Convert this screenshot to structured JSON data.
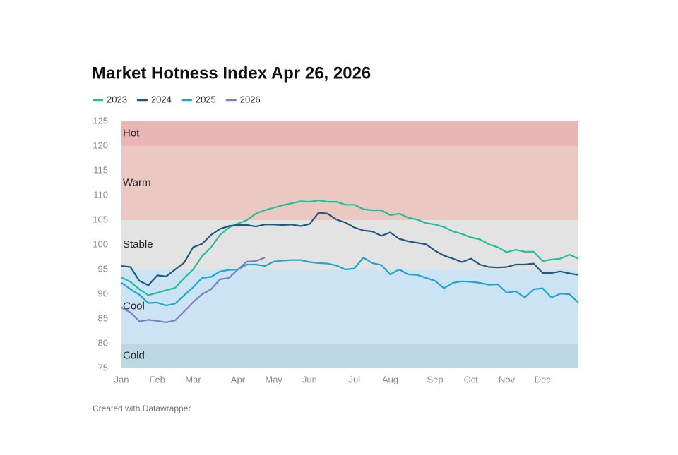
{
  "chart_data": {
    "type": "line",
    "title": "Market Hotness Index Apr 26, 2026",
    "footer": "Created with Datawrapper",
    "categories": [
      "Jan",
      null,
      null,
      null,
      "Feb",
      null,
      null,
      null,
      "Mar",
      null,
      null,
      null,
      null,
      "Apr",
      null,
      null,
      null,
      "May",
      null,
      null,
      null,
      "Jun",
      null,
      null,
      null,
      null,
      "Jul",
      null,
      null,
      null,
      "Aug",
      null,
      null,
      null,
      null,
      "Sep",
      null,
      null,
      null,
      "Oct",
      null,
      null,
      null,
      "Nov",
      null,
      null,
      null,
      "Dec",
      null,
      null,
      null,
      null
    ],
    "ylim": [
      75,
      125
    ],
    "yticks": [
      75,
      80,
      85,
      90,
      95,
      100,
      105,
      110,
      115,
      120,
      125
    ],
    "bands": [
      {
        "label": "Hot",
        "from": 120,
        "to": 125,
        "color": "#ebb5b3"
      },
      {
        "label": "Warm",
        "from": 105,
        "to": 120,
        "color": "#ecc8c2"
      },
      {
        "label": "Stable",
        "from": 95,
        "to": 105,
        "color": "#e3e3e3"
      },
      {
        "label": "Cool",
        "from": 80,
        "to": 95,
        "color": "#cce3f3"
      },
      {
        "label": "Cold",
        "from": 75,
        "to": 80,
        "color": "#bcd9e3"
      }
    ],
    "series": [
      {
        "name": "2023",
        "color": "#1fbf9a",
        "values": [
          93.4,
          92.5,
          91.0,
          89.8,
          90.3,
          90.8,
          91.3,
          93.3,
          95.0,
          97.7,
          99.5,
          102.0,
          103.5,
          104.3,
          105.0,
          106.3,
          107.0,
          107.5,
          108.0,
          108.4,
          108.8,
          108.7,
          109.0,
          108.7,
          108.7,
          108.1,
          108.1,
          107.2,
          107.0,
          107.0,
          106.0,
          106.3,
          105.5,
          105.1,
          104.4,
          104.1,
          103.6,
          102.7,
          102.2,
          101.5,
          101.1,
          100.1,
          99.5,
          98.5,
          99.0,
          98.6,
          98.6,
          96.7,
          97.0,
          97.2,
          98.0,
          97.2
        ]
      },
      {
        "name": "2024",
        "color": "#1f5a7a",
        "values": [
          95.7,
          95.5,
          92.7,
          91.8,
          93.8,
          93.6,
          95.0,
          96.4,
          99.5,
          100.2,
          102.0,
          103.2,
          103.8,
          104.0,
          104.0,
          103.7,
          104.1,
          104.1,
          104.0,
          104.1,
          103.8,
          104.2,
          106.5,
          106.3,
          105.1,
          104.5,
          103.5,
          102.9,
          102.7,
          101.8,
          102.5,
          101.2,
          100.7,
          100.4,
          100.1,
          98.8,
          97.8,
          97.2,
          96.5,
          97.2,
          96.0,
          95.5,
          95.4,
          95.5,
          96.0,
          96.0,
          96.2,
          94.3,
          94.3,
          94.6,
          94.2,
          93.9
        ]
      },
      {
        "name": "2025",
        "color": "#1ea6d0",
        "values": [
          92.3,
          91.0,
          89.9,
          88.2,
          88.3,
          87.7,
          88.1,
          89.8,
          91.4,
          93.3,
          93.5,
          94.6,
          94.9,
          95.0,
          96.0,
          96.0,
          95.7,
          96.6,
          96.8,
          96.9,
          96.9,
          96.5,
          96.3,
          96.2,
          95.8,
          95.0,
          95.2,
          97.4,
          96.3,
          95.9,
          94.0,
          95.0,
          94.0,
          93.9,
          93.3,
          92.7,
          91.2,
          92.3,
          92.6,
          92.5,
          92.3,
          91.9,
          92.0,
          90.3,
          90.6,
          89.3,
          91.0,
          91.2,
          89.3,
          90.1,
          90.0,
          88.3
        ]
      },
      {
        "name": "2026",
        "color": "#7a7ec4",
        "values": [
          87.3,
          86.3,
          84.5,
          84.8,
          84.6,
          84.3,
          84.7,
          86.5,
          88.4,
          90.0,
          91.0,
          93.0,
          93.3,
          95.0,
          96.6,
          96.7,
          97.4,
          null,
          null,
          null,
          null,
          null,
          null,
          null,
          null,
          null,
          null,
          null,
          null,
          null,
          null,
          null,
          null,
          null,
          null,
          null,
          null,
          null,
          null,
          null,
          null,
          null,
          null,
          null,
          null,
          null,
          null,
          null,
          null,
          null,
          null,
          null
        ]
      }
    ]
  }
}
